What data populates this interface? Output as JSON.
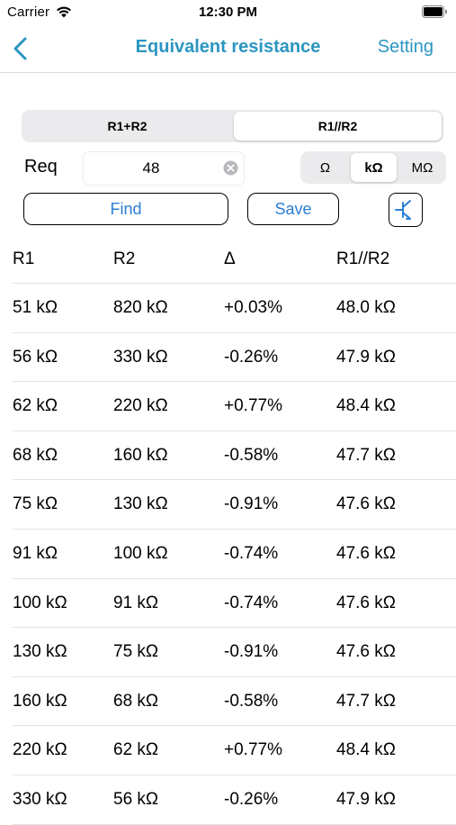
{
  "status": {
    "carrier": "Carrier",
    "time": "12:30 PM"
  },
  "nav": {
    "title": "Equivalent resistance",
    "setting": "Setting"
  },
  "mode": {
    "options": [
      "R1+R2",
      "R1//R2"
    ],
    "selected": "R1//R2"
  },
  "req": {
    "label": "Req",
    "value": "48"
  },
  "units": {
    "options": [
      "Ω",
      "kΩ",
      "MΩ"
    ],
    "selected": "kΩ"
  },
  "buttons": {
    "find": "Find",
    "save": "Save"
  },
  "table": {
    "headers": [
      "R1",
      "R2",
      "Δ",
      "R1//R2"
    ],
    "rows": [
      [
        "51 kΩ",
        "820 kΩ",
        "+0.03%",
        "48.0 kΩ"
      ],
      [
        "56 kΩ",
        "330 kΩ",
        "-0.26%",
        "47.9 kΩ"
      ],
      [
        "62 kΩ",
        "220 kΩ",
        "+0.77%",
        "48.4 kΩ"
      ],
      [
        "68 kΩ",
        "160 kΩ",
        "-0.58%",
        "47.7 kΩ"
      ],
      [
        "75 kΩ",
        "130 kΩ",
        "-0.91%",
        "47.6 kΩ"
      ],
      [
        "91 kΩ",
        "100 kΩ",
        "-0.74%",
        "47.6 kΩ"
      ],
      [
        "100 kΩ",
        "91 kΩ",
        "-0.74%",
        "47.6 kΩ"
      ],
      [
        "130 kΩ",
        "75 kΩ",
        "-0.91%",
        "47.6 kΩ"
      ],
      [
        "160 kΩ",
        "68 kΩ",
        "-0.58%",
        "47.7 kΩ"
      ],
      [
        "220 kΩ",
        "62 kΩ",
        "+0.77%",
        "48.4 kΩ"
      ],
      [
        "330 kΩ",
        "56 kΩ",
        "-0.26%",
        "47.9 kΩ"
      ]
    ]
  },
  "colors": {
    "accent": "#2b96c0",
    "button_text": "#2b7fd6"
  },
  "icons": [
    "wifi-icon",
    "battery-icon",
    "back-chevron-icon",
    "clear-icon",
    "circuit-icon"
  ]
}
